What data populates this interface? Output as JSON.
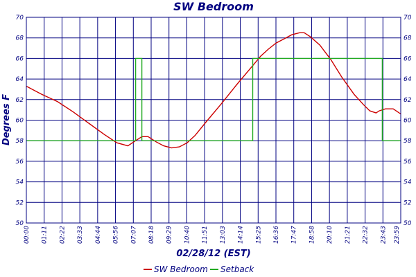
{
  "chart_data": {
    "type": "line",
    "title": "SW Bedroom",
    "xlabel": "02/28/12 (EST)",
    "ylabel": "Degrees F",
    "ylim": [
      50,
      70
    ],
    "yticks": [
      "50",
      "52",
      "54",
      "56",
      "58",
      "60",
      "62",
      "64",
      "66",
      "68",
      "70"
    ],
    "xticks": [
      "00:00",
      "01:11",
      "02:22",
      "03:33",
      "04:44",
      "05:56",
      "07:07",
      "08:18",
      "09:29",
      "10:40",
      "11:51",
      "13:03",
      "14:14",
      "15:25",
      "16:36",
      "17:47",
      "18:58",
      "20:10",
      "21:21",
      "22:32",
      "23:43",
      "23:59"
    ],
    "xlim_hours": [
      0,
      23.983
    ],
    "grid": true,
    "legend_position": "bottom",
    "colors": {
      "sw_bedroom": "#cc0000",
      "setback": "#22aa22",
      "grid": "#000080",
      "text": "#000080"
    },
    "series": [
      {
        "name": "SW Bedroom",
        "x_hours": [
          0,
          1,
          2,
          3,
          4,
          5,
          5.8,
          6.5,
          7.0,
          7.4,
          7.8,
          8.3,
          8.8,
          9.3,
          9.8,
          10.3,
          10.8,
          11.5,
          12.5,
          13.5,
          14.5,
          15.0,
          15.5,
          16.0,
          16.5,
          17.0,
          17.5,
          17.8,
          18.2,
          18.8,
          19.5,
          20.2,
          21.0,
          21.6,
          22.0,
          22.4,
          22.6,
          23.0,
          23.5,
          23.983
        ],
        "values": [
          63.3,
          62.5,
          61.8,
          60.8,
          59.7,
          58.6,
          57.8,
          57.5,
          58.0,
          58.4,
          58.4,
          57.9,
          57.5,
          57.3,
          57.4,
          57.8,
          58.5,
          59.8,
          61.6,
          63.5,
          65.3,
          66.2,
          66.9,
          67.5,
          67.9,
          68.3,
          68.5,
          68.5,
          68.1,
          67.3,
          65.9,
          64.2,
          62.5,
          61.5,
          60.9,
          60.7,
          60.9,
          61.1,
          61.1,
          60.6
        ]
      },
      {
        "name": "Setback",
        "x_hours": [
          0,
          7.0,
          7.0,
          7.4,
          7.4,
          14.5,
          14.5,
          22.8,
          22.8,
          23.983
        ],
        "values": [
          58,
          58,
          66,
          66,
          58,
          58,
          66,
          66,
          58,
          58
        ]
      }
    ]
  }
}
